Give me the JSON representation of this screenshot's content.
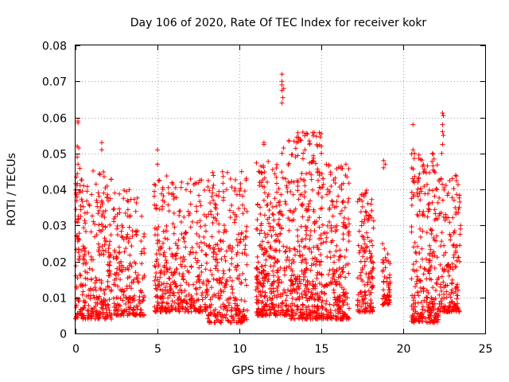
{
  "chart_data": {
    "type": "scatter",
    "title": "Day 106 of 2020, Rate Of TEC Index for receiver kokr",
    "xlabel": "GPS time / hours",
    "ylabel": "ROTI / TECUs",
    "xlim": [
      0,
      25
    ],
    "ylim": [
      0,
      0.08
    ],
    "xticks": [
      0,
      5,
      10,
      15,
      20,
      25
    ],
    "xtick_labels": [
      "0",
      "5",
      "10",
      "15",
      "20",
      "25"
    ],
    "yticks": [
      0,
      0.01,
      0.02,
      0.03,
      0.04,
      0.05,
      0.06,
      0.07,
      0.08
    ],
    "ytick_labels": [
      "0",
      "0.01",
      "0.02",
      "0.03",
      "0.04",
      "0.05",
      "0.06",
      "0.07",
      "0.08"
    ],
    "grid": true,
    "marker": "+",
    "marker_color": "#ff0000",
    "series": [
      {
        "name": "ROTI",
        "clusters": [
          {
            "x_start": 0.0,
            "x_end": 2.2,
            "y_min": 0.004,
            "y_max": 0.046,
            "count": 320
          },
          {
            "x_start": 2.3,
            "x_end": 4.2,
            "y_min": 0.005,
            "y_max": 0.04,
            "count": 220
          },
          {
            "x_start": 4.8,
            "x_end": 6.0,
            "y_min": 0.006,
            "y_max": 0.044,
            "count": 170
          },
          {
            "x_start": 6.0,
            "x_end": 8.0,
            "y_min": 0.006,
            "y_max": 0.043,
            "count": 220
          },
          {
            "x_start": 8.0,
            "x_end": 10.5,
            "y_min": 0.003,
            "y_max": 0.045,
            "count": 300
          },
          {
            "x_start": 11.0,
            "x_end": 13.0,
            "y_min": 0.005,
            "y_max": 0.048,
            "count": 330
          },
          {
            "x_start": 13.0,
            "x_end": 15.0,
            "y_min": 0.004,
            "y_max": 0.056,
            "count": 360
          },
          {
            "x_start": 15.0,
            "x_end": 16.7,
            "y_min": 0.004,
            "y_max": 0.047,
            "count": 260
          },
          {
            "x_start": 17.2,
            "x_end": 18.2,
            "y_min": 0.006,
            "y_max": 0.042,
            "count": 150
          },
          {
            "x_start": 18.7,
            "x_end": 19.2,
            "y_min": 0.008,
            "y_max": 0.025,
            "count": 60
          },
          {
            "x_start": 20.5,
            "x_end": 22.2,
            "y_min": 0.003,
            "y_max": 0.05,
            "count": 280
          },
          {
            "x_start": 22.2,
            "x_end": 23.5,
            "y_min": 0.006,
            "y_max": 0.044,
            "count": 170
          }
        ],
        "outliers": [
          {
            "x": 0.15,
            "y": 0.059
          },
          {
            "x": 0.15,
            "y": 0.0585
          },
          {
            "x": 0.1,
            "y": 0.052
          },
          {
            "x": 0.2,
            "y": 0.0515
          },
          {
            "x": 0.1,
            "y": 0.049
          },
          {
            "x": 0.15,
            "y": 0.047
          },
          {
            "x": 1.6,
            "y": 0.053
          },
          {
            "x": 1.6,
            "y": 0.051
          },
          {
            "x": 5.0,
            "y": 0.051
          },
          {
            "x": 5.0,
            "y": 0.047
          },
          {
            "x": 11.5,
            "y": 0.053
          },
          {
            "x": 11.5,
            "y": 0.0525
          },
          {
            "x": 12.6,
            "y": 0.072
          },
          {
            "x": 12.6,
            "y": 0.07
          },
          {
            "x": 12.6,
            "y": 0.069
          },
          {
            "x": 12.7,
            "y": 0.068
          },
          {
            "x": 12.6,
            "y": 0.0675
          },
          {
            "x": 12.65,
            "y": 0.0655
          },
          {
            "x": 12.6,
            "y": 0.064
          },
          {
            "x": 12.7,
            "y": 0.0515
          },
          {
            "x": 12.6,
            "y": 0.05
          },
          {
            "x": 13.5,
            "y": 0.0545
          },
          {
            "x": 13.6,
            "y": 0.0545
          },
          {
            "x": 13.5,
            "y": 0.053
          },
          {
            "x": 14.0,
            "y": 0.051
          },
          {
            "x": 15.0,
            "y": 0.0555
          },
          {
            "x": 15.0,
            "y": 0.052
          },
          {
            "x": 15.0,
            "y": 0.05
          },
          {
            "x": 16.5,
            "y": 0.047
          },
          {
            "x": 18.8,
            "y": 0.048
          },
          {
            "x": 18.9,
            "y": 0.047
          },
          {
            "x": 18.8,
            "y": 0.046
          },
          {
            "x": 20.6,
            "y": 0.058
          },
          {
            "x": 20.6,
            "y": 0.051
          },
          {
            "x": 20.7,
            "y": 0.05
          },
          {
            "x": 22.4,
            "y": 0.0612
          },
          {
            "x": 22.45,
            "y": 0.0605
          },
          {
            "x": 22.4,
            "y": 0.058
          },
          {
            "x": 22.4,
            "y": 0.056
          },
          {
            "x": 22.45,
            "y": 0.055
          },
          {
            "x": 22.4,
            "y": 0.0525
          },
          {
            "x": 22.35,
            "y": 0.05
          },
          {
            "x": 23.0,
            "y": 0.043
          },
          {
            "x": 23.1,
            "y": 0.037
          },
          {
            "x": 23.5,
            "y": 0.03
          }
        ]
      }
    ]
  }
}
